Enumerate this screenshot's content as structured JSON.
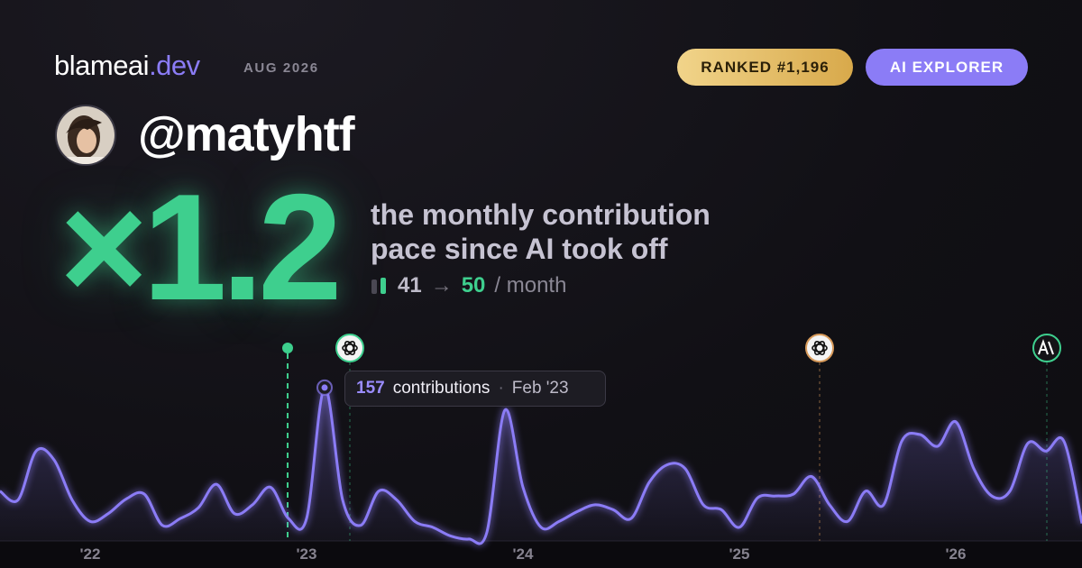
{
  "header": {
    "brand": "blameai",
    "tld": ".dev",
    "date": "AUG 2026",
    "badges": [
      "RANKED #1,196",
      "AI EXPLORER"
    ]
  },
  "profile": {
    "handle": "@matyhtf"
  },
  "headline": {
    "multiplier": "×1.2",
    "lines": [
      "the monthly contribution",
      "pace since AI took off"
    ],
    "before": 41,
    "arrow": "→",
    "after": 50,
    "unit": "/ month"
  },
  "tooltip": {
    "label": "contributions",
    "separator": "·",
    "date": "Feb '23"
  },
  "chart_data": {
    "type": "line",
    "categories": [
      null,
      null,
      null,
      null,
      null,
      "'22",
      null,
      null,
      null,
      null,
      null,
      null,
      null,
      null,
      null,
      null,
      null,
      "'23",
      null,
      null,
      null,
      null,
      null,
      null,
      null,
      null,
      null,
      null,
      null,
      "'24",
      null,
      null,
      null,
      null,
      null,
      null,
      null,
      null,
      null,
      null,
      null,
      "'25",
      null,
      null,
      null,
      null,
      null,
      null,
      null,
      null,
      null,
      null,
      null,
      "'26",
      null,
      null,
      null,
      null,
      null,
      null,
      null
    ],
    "values": [
      51,
      42,
      92,
      83,
      42,
      20,
      28,
      43,
      48,
      16,
      23,
      34,
      58,
      28,
      37,
      55,
      23,
      23,
      157,
      42,
      16,
      51,
      42,
      20,
      14,
      5,
      2,
      9,
      134,
      55,
      14,
      20,
      30,
      37,
      32,
      23,
      60,
      78,
      74,
      37,
      32,
      14,
      44,
      46,
      48,
      66,
      37,
      20,
      51,
      37,
      102,
      109,
      97,
      122,
      74,
      46,
      51,
      100,
      92,
      102,
      18
    ],
    "color": "#8b7cf6",
    "ylim": [
      0,
      180
    ]
  }
}
